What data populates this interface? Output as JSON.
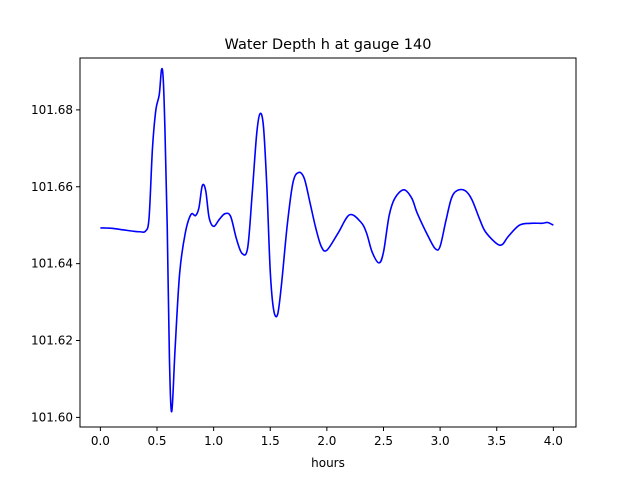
{
  "chart_data": {
    "type": "line",
    "title": "Water Depth h at gauge 140",
    "xlabel": "hours",
    "ylabel": "",
    "xlim": [
      -0.18,
      4.2
    ],
    "ylim": [
      101.5975,
      101.6935
    ],
    "xticks": [
      0.0,
      0.5,
      1.0,
      1.5,
      2.0,
      2.5,
      3.0,
      3.5,
      4.0
    ],
    "xtick_labels": [
      "0.0",
      "0.5",
      "1.0",
      "1.5",
      "2.0",
      "2.5",
      "3.0",
      "3.5",
      "4.0"
    ],
    "yticks": [
      101.6,
      101.62,
      101.64,
      101.66,
      101.68
    ],
    "ytick_labels": [
      "101.60",
      "101.62",
      "101.64",
      "101.66",
      "101.68"
    ],
    "grid": false,
    "legend": "none",
    "series": [
      {
        "color": "#0000ff",
        "x": [
          0.0,
          0.1,
          0.2,
          0.3,
          0.35,
          0.4,
          0.43,
          0.46,
          0.49,
          0.52,
          0.54,
          0.555,
          0.57,
          0.59,
          0.61,
          0.63,
          0.66,
          0.7,
          0.75,
          0.8,
          0.84,
          0.87,
          0.9,
          0.93,
          0.96,
          1.0,
          1.05,
          1.1,
          1.15,
          1.2,
          1.25,
          1.3,
          1.34,
          1.38,
          1.41,
          1.44,
          1.47,
          1.5,
          1.53,
          1.565,
          1.6,
          1.65,
          1.7,
          1.75,
          1.8,
          1.85,
          1.9,
          1.95,
          2.0,
          2.1,
          2.2,
          2.3,
          2.35,
          2.4,
          2.46,
          2.5,
          2.55,
          2.6,
          2.68,
          2.75,
          2.8,
          2.9,
          2.96,
          3.0,
          3.05,
          3.1,
          3.15,
          3.22,
          3.28,
          3.35,
          3.4,
          3.5,
          3.55,
          3.6,
          3.7,
          3.8,
          3.9,
          3.95,
          4.0
        ],
        "y": [
          101.6493,
          101.6492,
          101.6488,
          101.6484,
          101.6483,
          101.6485,
          101.652,
          101.67,
          101.68,
          101.684,
          101.6905,
          101.688,
          101.675,
          101.65,
          101.615,
          101.6015,
          101.618,
          101.6375,
          101.648,
          101.6528,
          101.6525,
          101.6545,
          101.6603,
          101.659,
          101.652,
          101.6497,
          101.6515,
          101.653,
          101.6523,
          101.6466,
          101.6427,
          101.644,
          101.658,
          101.6737,
          101.679,
          101.6757,
          101.66,
          101.638,
          101.628,
          101.6268,
          101.6348,
          101.65,
          101.661,
          101.6637,
          101.6622,
          101.656,
          101.6495,
          101.6445,
          101.6435,
          101.648,
          101.6527,
          101.6508,
          101.648,
          101.643,
          101.6402,
          101.643,
          101.6525,
          101.657,
          101.6592,
          101.657,
          101.653,
          101.6468,
          101.6438,
          101.6445,
          101.651,
          101.657,
          101.659,
          101.659,
          101.6567,
          101.6515,
          101.6483,
          101.6452,
          101.645,
          101.647,
          101.65,
          101.6505,
          101.6505,
          101.6507,
          101.65
        ]
      }
    ]
  }
}
